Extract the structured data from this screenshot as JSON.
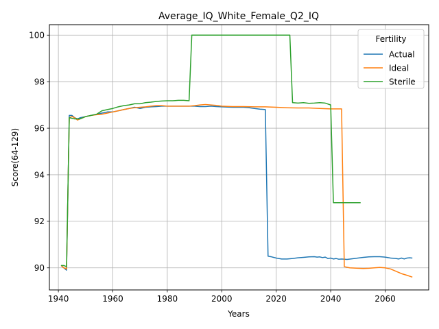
{
  "chart_data": {
    "type": "line",
    "title": "Average_IQ_White_Female_Q2_IQ",
    "xlabel": "Years",
    "ylabel": "Score(64-129)",
    "xlim": [
      1936.7,
      2076.0
    ],
    "ylim": [
      89.05,
      100.45
    ],
    "xticks": [
      1940,
      1960,
      1980,
      2000,
      2020,
      2040,
      2060
    ],
    "yticks": [
      90,
      92,
      94,
      96,
      98,
      100
    ],
    "grid": true,
    "legend": {
      "title": "Fertility",
      "placement": "upper right"
    },
    "series": [
      {
        "name": "Actual",
        "color": "#1f77b4",
        "points": [
          [
            1941,
            90.1
          ],
          [
            1942,
            90.0
          ],
          [
            1943,
            89.9
          ],
          [
            1944,
            96.55
          ],
          [
            1945,
            96.55
          ],
          [
            1946,
            96.45
          ],
          [
            1947,
            96.4
          ],
          [
            1948,
            96.45
          ],
          [
            1950,
            96.5
          ],
          [
            1952,
            96.55
          ],
          [
            1954,
            96.6
          ],
          [
            1956,
            96.65
          ],
          [
            1958,
            96.7
          ],
          [
            1960,
            96.7
          ],
          [
            1962,
            96.75
          ],
          [
            1964,
            96.8
          ],
          [
            1966,
            96.85
          ],
          [
            1968,
            96.9
          ],
          [
            1970,
            96.85
          ],
          [
            1972,
            96.9
          ],
          [
            1974,
            96.92
          ],
          [
            1976,
            96.93
          ],
          [
            1978,
            96.95
          ],
          [
            1980,
            96.95
          ],
          [
            1982,
            96.95
          ],
          [
            1984,
            96.95
          ],
          [
            1986,
            96.95
          ],
          [
            1988,
            96.95
          ],
          [
            1990,
            96.95
          ],
          [
            1992,
            96.93
          ],
          [
            1994,
            96.93
          ],
          [
            1996,
            96.95
          ],
          [
            1998,
            96.93
          ],
          [
            2000,
            96.92
          ],
          [
            2004,
            96.9
          ],
          [
            2008,
            96.9
          ],
          [
            2010,
            96.88
          ],
          [
            2012,
            96.85
          ],
          [
            2014,
            96.82
          ],
          [
            2016,
            96.8
          ],
          [
            2017,
            90.5
          ],
          [
            2018,
            90.48
          ],
          [
            2020,
            90.42
          ],
          [
            2022,
            90.38
          ],
          [
            2024,
            90.38
          ],
          [
            2026,
            90.4
          ],
          [
            2028,
            90.43
          ],
          [
            2030,
            90.45
          ],
          [
            2032,
            90.47
          ],
          [
            2034,
            90.48
          ],
          [
            2035,
            90.46
          ],
          [
            2036,
            90.47
          ],
          [
            2037,
            90.44
          ],
          [
            2038,
            90.46
          ],
          [
            2039,
            90.4
          ],
          [
            2040,
            90.42
          ],
          [
            2041,
            90.38
          ],
          [
            2042,
            90.4
          ],
          [
            2043,
            90.37
          ],
          [
            2044,
            90.38
          ],
          [
            2046,
            90.36
          ],
          [
            2048,
            90.39
          ],
          [
            2050,
            90.42
          ],
          [
            2052,
            90.45
          ],
          [
            2054,
            90.47
          ],
          [
            2056,
            90.48
          ],
          [
            2058,
            90.48
          ],
          [
            2060,
            90.46
          ],
          [
            2062,
            90.42
          ],
          [
            2064,
            90.4
          ],
          [
            2065,
            90.38
          ],
          [
            2066,
            90.42
          ],
          [
            2067,
            90.38
          ],
          [
            2068,
            90.42
          ],
          [
            2069,
            90.43
          ],
          [
            2070,
            90.42
          ]
        ]
      },
      {
        "name": "Ideal",
        "color": "#ff7f0e",
        "points": [
          [
            1941,
            90.1
          ],
          [
            1942,
            90.0
          ],
          [
            1943,
            89.95
          ],
          [
            1944,
            96.45
          ],
          [
            1945,
            96.5
          ],
          [
            1946,
            96.45
          ],
          [
            1947,
            96.35
          ],
          [
            1948,
            96.4
          ],
          [
            1950,
            96.5
          ],
          [
            1952,
            96.55
          ],
          [
            1954,
            96.58
          ],
          [
            1956,
            96.6
          ],
          [
            1958,
            96.65
          ],
          [
            1960,
            96.7
          ],
          [
            1962,
            96.75
          ],
          [
            1964,
            96.8
          ],
          [
            1966,
            96.85
          ],
          [
            1968,
            96.88
          ],
          [
            1970,
            96.9
          ],
          [
            1972,
            96.92
          ],
          [
            1974,
            96.95
          ],
          [
            1976,
            96.97
          ],
          [
            1978,
            96.97
          ],
          [
            1980,
            96.95
          ],
          [
            1984,
            96.95
          ],
          [
            1988,
            96.95
          ],
          [
            1990,
            96.97
          ],
          [
            1992,
            97.0
          ],
          [
            1994,
            97.02
          ],
          [
            1996,
            97.0
          ],
          [
            1998,
            96.98
          ],
          [
            2000,
            96.95
          ],
          [
            2004,
            96.93
          ],
          [
            2008,
            96.93
          ],
          [
            2012,
            96.92
          ],
          [
            2016,
            96.92
          ],
          [
            2020,
            96.9
          ],
          [
            2024,
            96.88
          ],
          [
            2028,
            96.87
          ],
          [
            2032,
            96.87
          ],
          [
            2036,
            96.85
          ],
          [
            2040,
            96.83
          ],
          [
            2044,
            96.83
          ],
          [
            2045,
            90.05
          ],
          [
            2047,
            90.0
          ],
          [
            2050,
            89.98
          ],
          [
            2052,
            89.97
          ],
          [
            2054,
            89.98
          ],
          [
            2056,
            90.0
          ],
          [
            2058,
            90.02
          ],
          [
            2060,
            90.0
          ],
          [
            2062,
            89.95
          ],
          [
            2064,
            89.85
          ],
          [
            2066,
            89.75
          ],
          [
            2068,
            89.68
          ],
          [
            2070,
            89.6
          ]
        ]
      },
      {
        "name": "Sterile",
        "color": "#2ca02c",
        "points": [
          [
            1941,
            90.1
          ],
          [
            1942,
            90.1
          ],
          [
            1943,
            90.05
          ],
          [
            1944,
            96.45
          ],
          [
            1946,
            96.4
          ],
          [
            1948,
            96.4
          ],
          [
            1950,
            96.5
          ],
          [
            1952,
            96.55
          ],
          [
            1954,
            96.6
          ],
          [
            1956,
            96.75
          ],
          [
            1958,
            96.8
          ],
          [
            1960,
            96.85
          ],
          [
            1962,
            96.92
          ],
          [
            1964,
            96.97
          ],
          [
            1966,
            97.0
          ],
          [
            1968,
            97.05
          ],
          [
            1970,
            97.05
          ],
          [
            1972,
            97.1
          ],
          [
            1974,
            97.12
          ],
          [
            1976,
            97.15
          ],
          [
            1978,
            97.17
          ],
          [
            1980,
            97.18
          ],
          [
            1982,
            97.18
          ],
          [
            1984,
            97.2
          ],
          [
            1986,
            97.2
          ],
          [
            1988,
            97.18
          ],
          [
            1989,
            100.0
          ],
          [
            1995,
            100.0
          ],
          [
            2000,
            100.0
          ],
          [
            2010,
            100.0
          ],
          [
            2020,
            100.0
          ],
          [
            2025,
            100.0
          ],
          [
            2026,
            97.1
          ],
          [
            2028,
            97.08
          ],
          [
            2030,
            97.1
          ],
          [
            2032,
            97.07
          ],
          [
            2034,
            97.08
          ],
          [
            2036,
            97.1
          ],
          [
            2038,
            97.08
          ],
          [
            2040,
            97.0
          ],
          [
            2041,
            92.8
          ],
          [
            2045,
            92.8
          ],
          [
            2050,
            92.8
          ],
          [
            2051,
            92.8
          ]
        ]
      }
    ]
  }
}
